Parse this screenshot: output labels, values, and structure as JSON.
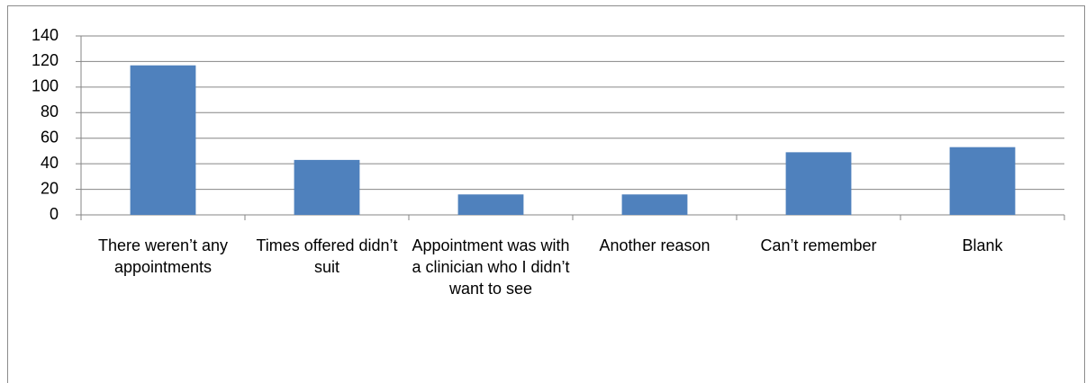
{
  "chart_data": {
    "type": "bar",
    "categories": [
      "There weren’t any appointments",
      "Times offered didn’t suit",
      "Appointment was with a clinician who I didn’t want to see",
      "Another reason",
      "Can’t remember",
      "Blank"
    ],
    "values": [
      117,
      43,
      16,
      16,
      49,
      53
    ],
    "color": "#4f81bd",
    "ylim": [
      0,
      140
    ],
    "yticks": [
      0,
      20,
      40,
      60,
      80,
      100,
      120,
      140
    ],
    "grid": true
  }
}
